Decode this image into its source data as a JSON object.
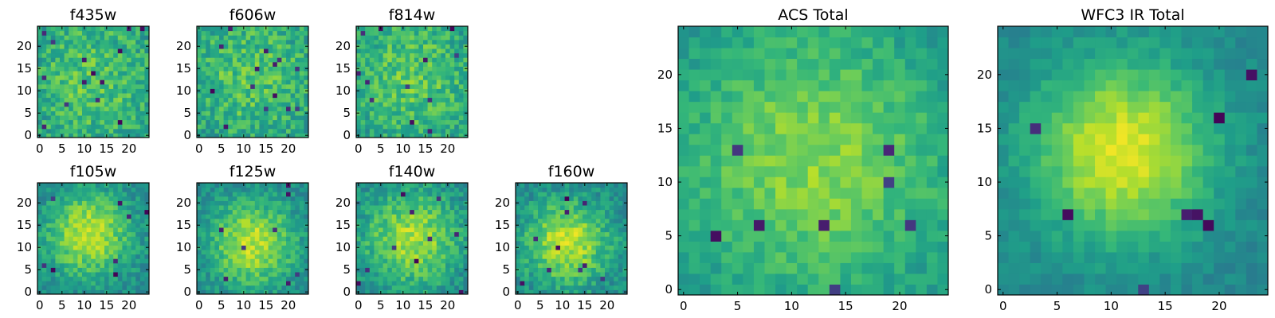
{
  "chart_data": [
    {
      "type": "heatmap",
      "title": "f435w",
      "colormap": "viridis",
      "grid": false,
      "xlim": [
        0,
        25
      ],
      "ylim": [
        0,
        25
      ],
      "xticks": [
        0,
        5,
        10,
        15,
        20
      ],
      "yticks": [
        0,
        5,
        10,
        15,
        20
      ],
      "data_source": "illegible-per-pixel-values-synthesized",
      "profile": {
        "center": [
          12,
          12
        ],
        "peak": 0.72,
        "spread": 14,
        "noise": 0.3,
        "low_pixels": 14,
        "seed": 101
      }
    },
    {
      "type": "heatmap",
      "title": "f606w",
      "colormap": "viridis",
      "grid": false,
      "xlim": [
        0,
        25
      ],
      "ylim": [
        0,
        25
      ],
      "xticks": [
        0,
        5,
        10,
        15,
        20
      ],
      "yticks": [
        0,
        5,
        10,
        15,
        20
      ],
      "data_source": "illegible-per-pixel-values-synthesized",
      "profile": {
        "center": [
          12,
          13
        ],
        "peak": 0.72,
        "spread": 14,
        "noise": 0.3,
        "low_pixels": 14,
        "seed": 202
      }
    },
    {
      "type": "heatmap",
      "title": "f814w",
      "colormap": "viridis",
      "grid": false,
      "xlim": [
        0,
        25
      ],
      "ylim": [
        0,
        25
      ],
      "xticks": [
        0,
        5,
        10,
        15,
        20
      ],
      "yticks": [
        0,
        5,
        10,
        15,
        20
      ],
      "data_source": "illegible-per-pixel-values-synthesized",
      "profile": {
        "center": [
          12,
          13
        ],
        "peak": 0.74,
        "spread": 13,
        "noise": 0.28,
        "low_pixels": 12,
        "seed": 303
      }
    },
    {
      "type": "heatmap",
      "title": "f105w",
      "colormap": "viridis",
      "grid": false,
      "xlim": [
        0,
        25
      ],
      "ylim": [
        0,
        25
      ],
      "xticks": [
        0,
        5,
        10,
        15,
        20
      ],
      "yticks": [
        0,
        5,
        10,
        15,
        20
      ],
      "data_source": "illegible-per-pixel-values-synthesized",
      "profile": {
        "center": [
          11,
          13
        ],
        "peak": 0.9,
        "spread": 7,
        "noise": 0.22,
        "low_pixels": 8,
        "seed": 404
      }
    },
    {
      "type": "heatmap",
      "title": "f125w",
      "colormap": "viridis",
      "grid": false,
      "xlim": [
        0,
        25
      ],
      "ylim": [
        0,
        25
      ],
      "xticks": [
        0,
        5,
        10,
        15,
        20
      ],
      "yticks": [
        0,
        5,
        10,
        15,
        20
      ],
      "data_source": "illegible-per-pixel-values-synthesized",
      "profile": {
        "center": [
          12,
          11
        ],
        "peak": 0.9,
        "spread": 7,
        "noise": 0.22,
        "low_pixels": 8,
        "seed": 505
      }
    },
    {
      "type": "heatmap",
      "title": "f140w",
      "colormap": "viridis",
      "grid": false,
      "xlim": [
        0,
        25
      ],
      "ylim": [
        0,
        25
      ],
      "xticks": [
        0,
        5,
        10,
        15,
        20
      ],
      "yticks": [
        0,
        5,
        10,
        15,
        20
      ],
      "data_source": "illegible-per-pixel-values-synthesized",
      "profile": {
        "center": [
          12,
          12
        ],
        "peak": 0.86,
        "spread": 8,
        "noise": 0.24,
        "low_pixels": 10,
        "seed": 606
      }
    },
    {
      "type": "heatmap",
      "title": "f160w",
      "colormap": "viridis",
      "grid": false,
      "xlim": [
        0,
        25
      ],
      "ylim": [
        0,
        25
      ],
      "xticks": [
        0,
        5,
        10,
        15,
        20
      ],
      "yticks": [
        0,
        5,
        10,
        15,
        20
      ],
      "data_source": "illegible-per-pixel-values-synthesized",
      "profile": {
        "center": [
          11,
          11
        ],
        "peak": 0.9,
        "spread": 7,
        "noise": 0.24,
        "low_pixels": 10,
        "seed": 707
      }
    },
    {
      "type": "heatmap",
      "title": "ACS Total",
      "colormap": "viridis",
      "grid": false,
      "xlim": [
        0,
        25
      ],
      "ylim": [
        0,
        25
      ],
      "xticks": [
        0,
        5,
        10,
        15,
        20
      ],
      "yticks": [
        0,
        5,
        10,
        15,
        20
      ],
      "data_source": "illegible-per-pixel-values-synthesized",
      "profile": {
        "center": [
          12,
          12
        ],
        "peak": 0.82,
        "spread": 10,
        "noise": 0.16,
        "low_pixels": 8,
        "seed": 808
      }
    },
    {
      "type": "heatmap",
      "title": "WFC3 IR Total",
      "colormap": "viridis",
      "grid": false,
      "xlim": [
        0,
        25
      ],
      "ylim": [
        0,
        25
      ],
      "xticks": [
        0,
        5,
        10,
        15,
        20
      ],
      "yticks": [
        0,
        5,
        10,
        15,
        20
      ],
      "data_source": "illegible-per-pixel-values-synthesized",
      "profile": {
        "center": [
          11,
          13
        ],
        "peak": 0.95,
        "spread": 6,
        "noise": 0.12,
        "low_pixels": 8,
        "seed": 909
      }
    }
  ]
}
